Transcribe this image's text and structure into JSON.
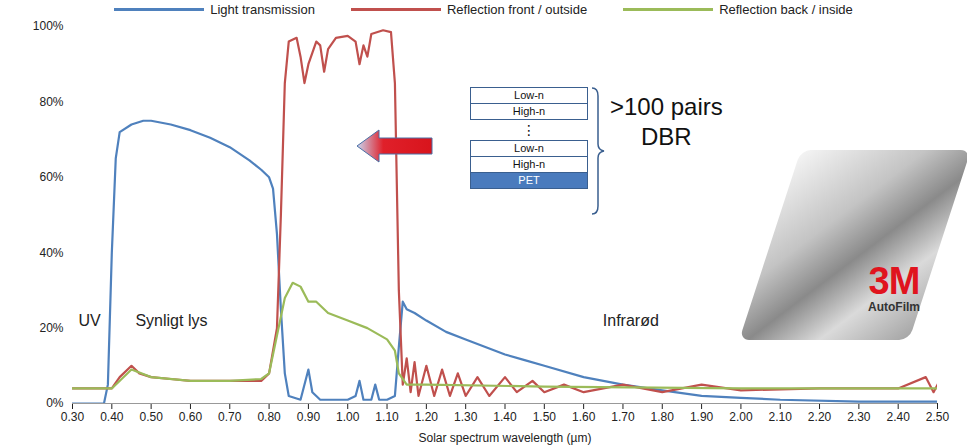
{
  "chart_data": {
    "type": "line",
    "x_label": "Solar spectrum wavelength (µm)",
    "xlim": [
      0.3,
      2.5
    ],
    "xticks": [
      {
        "value": 0.3,
        "label": "0.30"
      },
      {
        "value": 0.4,
        "label": "0.40"
      },
      {
        "value": 0.5,
        "label": "0.50"
      },
      {
        "value": 0.6,
        "label": "0.60"
      },
      {
        "value": 0.7,
        "label": "0.70"
      },
      {
        "value": 0.8,
        "label": "0.80"
      },
      {
        "value": 0.9,
        "label": "0.90"
      },
      {
        "value": 1.0,
        "label": "1.00"
      },
      {
        "value": 1.1,
        "label": "1.10"
      },
      {
        "value": 1.2,
        "label": "1.20"
      },
      {
        "value": 1.3,
        "label": "1.30"
      },
      {
        "value": 1.4,
        "label": "1.40"
      },
      {
        "value": 1.5,
        "label": "1.50"
      },
      {
        "value": 1.6,
        "label": "1.60"
      },
      {
        "value": 1.7,
        "label": "1.70"
      },
      {
        "value": 1.8,
        "label": "1.80"
      },
      {
        "value": 1.9,
        "label": "1.90"
      },
      {
        "value": 2.0,
        "label": "2.00"
      },
      {
        "value": 2.1,
        "label": "2.10"
      },
      {
        "value": 2.2,
        "label": "2.20"
      },
      {
        "value": 2.3,
        "label": "2.30"
      },
      {
        "value": 2.4,
        "label": "2.40"
      },
      {
        "value": 2.5,
        "label": "2.50"
      }
    ],
    "ylim": [
      0,
      100
    ],
    "yticks": [
      {
        "value": 0,
        "label": "0%"
      },
      {
        "value": 20,
        "label": "20%"
      },
      {
        "value": 40,
        "label": "40%"
      },
      {
        "value": 60,
        "label": "60%"
      },
      {
        "value": 80,
        "label": "80%"
      },
      {
        "value": 100,
        "label": "100%"
      }
    ],
    "grid": false,
    "legend": "top",
    "series": [
      {
        "name": "Light transmission",
        "color": "#4f81bd",
        "x": [
          0.3,
          0.38,
          0.39,
          0.4,
          0.41,
          0.42,
          0.45,
          0.48,
          0.5,
          0.55,
          0.6,
          0.65,
          0.7,
          0.75,
          0.78,
          0.8,
          0.81,
          0.82,
          0.83,
          0.84,
          0.85,
          0.88,
          0.9,
          0.91,
          0.93,
          1.0,
          1.02,
          1.03,
          1.04,
          1.06,
          1.07,
          1.08,
          1.1,
          1.12,
          1.13,
          1.14,
          1.15,
          1.17,
          1.2,
          1.25,
          1.3,
          1.35,
          1.4,
          1.45,
          1.5,
          1.6,
          1.7,
          1.8,
          1.9,
          2.0,
          2.1,
          2.3,
          2.5
        ],
        "values": [
          0,
          0,
          5,
          40,
          65,
          72,
          74,
          75,
          75,
          74,
          72.5,
          70.5,
          68,
          64.5,
          62,
          60,
          57,
          45,
          25,
          8,
          2,
          1,
          9,
          3,
          1,
          1,
          2,
          6,
          1,
          1,
          5,
          1,
          1,
          2,
          15,
          27,
          25,
          24,
          22,
          19,
          17,
          15,
          13,
          11.5,
          10,
          7,
          5,
          3.5,
          2,
          1.5,
          1,
          0.5,
          0.5
        ]
      },
      {
        "name": "Reflection front / outside",
        "color": "#c0504d",
        "x": [
          0.3,
          0.4,
          0.42,
          0.45,
          0.47,
          0.5,
          0.55,
          0.6,
          0.7,
          0.78,
          0.8,
          0.82,
          0.83,
          0.84,
          0.85,
          0.87,
          0.88,
          0.89,
          0.9,
          0.92,
          0.93,
          0.94,
          0.95,
          0.97,
          1.0,
          1.02,
          1.03,
          1.04,
          1.05,
          1.06,
          1.09,
          1.11,
          1.12,
          1.13,
          1.14,
          1.15,
          1.16,
          1.17,
          1.18,
          1.2,
          1.22,
          1.24,
          1.26,
          1.28,
          1.3,
          1.33,
          1.36,
          1.4,
          1.43,
          1.47,
          1.5,
          1.55,
          1.6,
          1.7,
          1.8,
          1.9,
          2.0,
          2.2,
          2.4,
          2.47,
          2.49,
          2.5
        ],
        "values": [
          4,
          4,
          7,
          10,
          8,
          7,
          6.5,
          6,
          6,
          6,
          8,
          20,
          50,
          85,
          96,
          97,
          92,
          85,
          90,
          96,
          95,
          88,
          94,
          97,
          97.5,
          96,
          90,
          95,
          92,
          98,
          99,
          98.5,
          85,
          30,
          5,
          12,
          3,
          11,
          2,
          10,
          2,
          9,
          2,
          8,
          2,
          7,
          2,
          7,
          3,
          6,
          3,
          5,
          3,
          5,
          3,
          5,
          3.5,
          4,
          4,
          7,
          3,
          5
        ]
      },
      {
        "name": "Reflection back / inside",
        "color": "#9bbb59",
        "x": [
          0.3,
          0.4,
          0.45,
          0.5,
          0.6,
          0.7,
          0.78,
          0.8,
          0.82,
          0.84,
          0.86,
          0.88,
          0.9,
          0.92,
          0.95,
          1.0,
          1.05,
          1.1,
          1.12,
          1.13,
          1.15,
          1.2,
          1.5,
          2.0,
          2.5
        ],
        "values": [
          4,
          4,
          9,
          7,
          6,
          6,
          6.5,
          8,
          18,
          28,
          32,
          31,
          27,
          27,
          24,
          22,
          20,
          17,
          14,
          8,
          5,
          5,
          4.5,
          4,
          4
        ]
      }
    ],
    "annotations": [
      "UV",
      "Synligt lys",
      "Infrarød"
    ],
    "inset": {
      "layers": [
        "Low-n",
        "High-n",
        "⋮",
        "Low-n",
        "High-n",
        "PET"
      ],
      "label": ">100 pairs DBR"
    },
    "logo": {
      "brand": "3M",
      "product": "AutoFilm"
    }
  }
}
